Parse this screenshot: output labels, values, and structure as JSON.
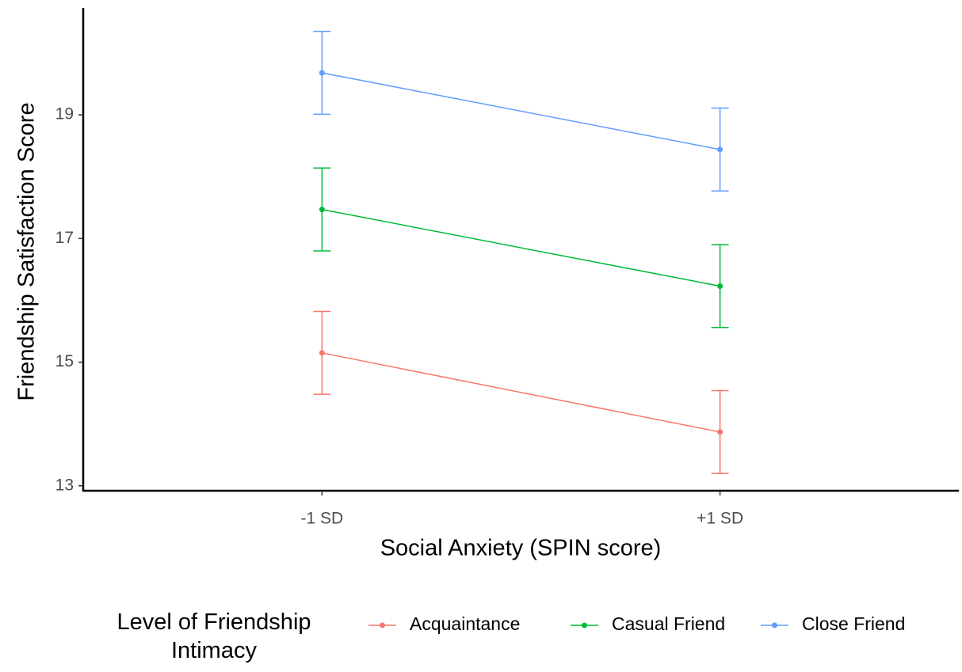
{
  "chart_data": {
    "type": "line",
    "x_label": "Social Anxiety (SPIN score)",
    "y_label": "Friendship Satisfaction Score",
    "categories": [
      "-1 SD",
      "+1 SD"
    ],
    "ylim": [
      12.92,
      20.73
    ],
    "yticks": [
      13,
      15,
      17,
      19
    ],
    "legend_title": "Level of Friendship Intimacy",
    "legend_position": "bottom",
    "grid": false,
    "series": [
      {
        "name": "Acquaintance",
        "color": "#F8766D",
        "values": [
          15.15,
          13.87
        ],
        "errors": [
          0.67,
          0.67
        ]
      },
      {
        "name": "Casual Friend",
        "color": "#00BA38",
        "values": [
          17.47,
          16.23
        ],
        "errors": [
          0.67,
          0.67
        ]
      },
      {
        "name": "Close Friend",
        "color": "#619CFF",
        "values": [
          19.68,
          18.44
        ],
        "errors": [
          0.67,
          0.67
        ]
      }
    ]
  }
}
